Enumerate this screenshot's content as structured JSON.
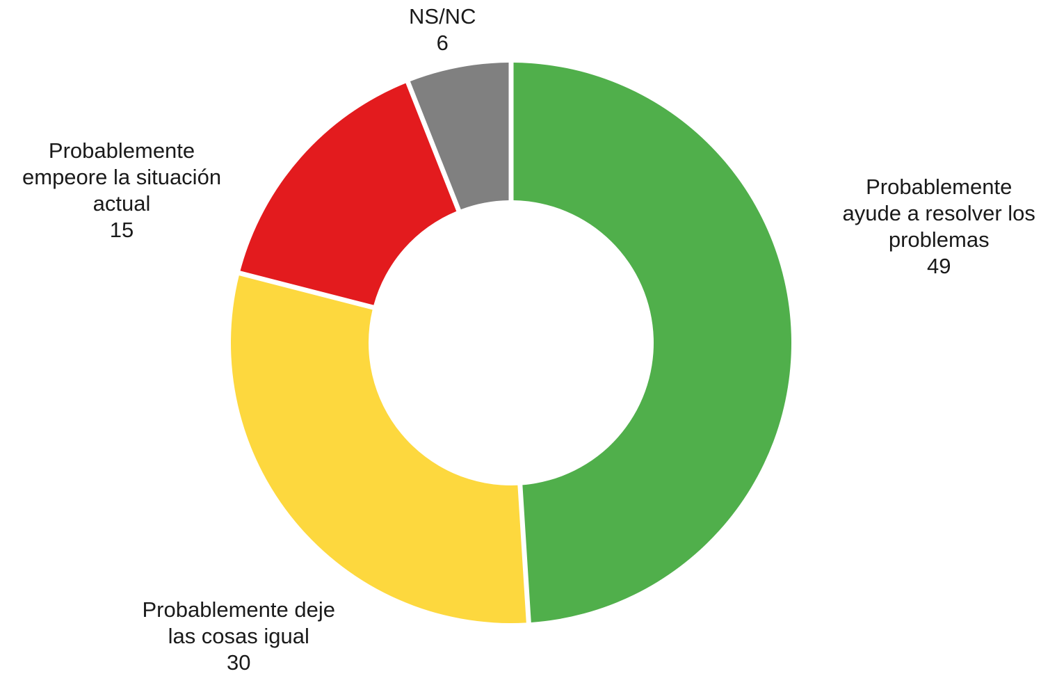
{
  "chart_data": {
    "type": "pie",
    "donut": true,
    "start_angle_deg": 0,
    "direction": "clockwise",
    "legend": "none",
    "slices": [
      {
        "label_lines": [
          "Probablemente",
          "ayude a resolver los",
          "problemas"
        ],
        "value": 49,
        "value_label": "49",
        "color": "#50AF4B"
      },
      {
        "label_lines": [
          "Probablemente deje",
          "las cosas igual"
        ],
        "value": 30,
        "value_label": "30",
        "color": "#FDD83E"
      },
      {
        "label_lines": [
          "Probablemente",
          "empeore la situación",
          "actual"
        ],
        "value": 15,
        "value_label": "15",
        "color": "#E31B1E"
      },
      {
        "label_lines": [
          "NS/NC"
        ],
        "value": 6,
        "value_label": "6",
        "color": "#808080"
      }
    ]
  }
}
